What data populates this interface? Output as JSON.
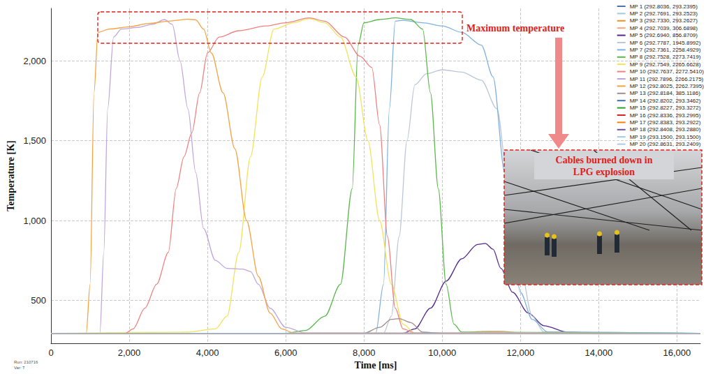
{
  "chart_data": {
    "type": "line",
    "xlabel": "Time [ms]",
    "ylabel": "Temperature [K]",
    "xlim": [
      0,
      16600
    ],
    "ylim": [
      230,
      2330
    ],
    "xticks": [
      0,
      {
        "value": 2000,
        "label": "2,000"
      },
      {
        "value": 4000,
        "label": "4,000"
      },
      {
        "value": 6000,
        "label": "6,000"
      },
      {
        "value": 8000,
        "label": "8,000"
      },
      {
        "value": 10000,
        "label": "10,000"
      },
      {
        "value": 12000,
        "label": "12,000"
      },
      {
        "value": 14000,
        "label": "14,000"
      },
      {
        "value": 16000,
        "label": "16,000"
      }
    ],
    "yticks": [
      500,
      {
        "value": 1000,
        "label": "1,000"
      },
      {
        "value": 1500,
        "label": "1,500"
      },
      {
        "value": 2000,
        "label": "2,000"
      }
    ],
    "grid": true,
    "legend": "upper right",
    "annotations": [
      "Maximum temperature",
      "Cables burned down in LPG explosion",
      "Run: 210716",
      "Var: T"
    ],
    "series": [
      {
        "name": "MP 1 (292.8036, 293.2395)",
        "color": "#4c72b0",
        "x": [
          0,
          16600
        ],
        "values": [
          293,
          293
        ]
      },
      {
        "name": "MP 2 (292.7691, 293.2523)",
        "color": "#9ecae1",
        "x": [
          0,
          16600
        ],
        "values": [
          293,
          293
        ]
      },
      {
        "name": "MP 3 (292.7330, 293.2627)",
        "color": "#f28e2b",
        "x": [
          0,
          16600
        ],
        "values": [
          293,
          293
        ]
      },
      {
        "name": "MP 4 (292.7039, 306.6898)",
        "color": "#f4a582",
        "x": [
          0,
          10500,
          11000,
          11500,
          12000,
          16600
        ],
        "values": [
          293,
          293,
          305,
          306,
          296,
          293
        ]
      },
      {
        "name": "MP 5 (292.6940, 856.8709)",
        "color": "#54278f",
        "x": [
          0,
          9000,
          9300,
          9700,
          10100,
          10500,
          10900,
          11100,
          11300,
          11500,
          11800,
          12200,
          12600,
          13200,
          14000,
          16600
        ],
        "values": [
          293,
          293,
          320,
          450,
          620,
          760,
          850,
          856,
          820,
          700,
          550,
          420,
          340,
          300,
          293,
          293
        ]
      },
      {
        "name": "MP 6 (292.7787, 1945.8992)",
        "color": "#bcc6d6",
        "x": [
          0,
          8500,
          8700,
          8900,
          9100,
          9300,
          9600,
          10000,
          10500,
          11000,
          11400,
          11700,
          12000,
          12300,
          12600,
          16600
        ],
        "values": [
          293,
          293,
          400,
          900,
          1500,
          1850,
          1920,
          1945,
          1930,
          1880,
          1700,
          1200,
          700,
          400,
          300,
          293
        ]
      },
      {
        "name": "MP 7 (292.7361, 2258.4929)",
        "color": "#7fb1de",
        "x": [
          0,
          8300,
          8500,
          8650,
          8800,
          9000,
          9500,
          10000,
          10500,
          11000,
          11300,
          11600,
          11800,
          12000,
          12300,
          12700,
          16600
        ],
        "values": [
          293,
          293,
          600,
          1700,
          2250,
          2255,
          2240,
          2220,
          2180,
          2100,
          1900,
          1300,
          800,
          550,
          380,
          300,
          293
        ]
      },
      {
        "name": "MP 8 (292.7528, 2273.7419)",
        "color": "#59b84a",
        "x": [
          0,
          6000,
          6500,
          7000,
          7400,
          7700,
          7850,
          8000,
          8400,
          8800,
          9200,
          9500,
          9700,
          9900,
          10100,
          10300,
          10500,
          16600
        ],
        "values": [
          293,
          293,
          310,
          400,
          600,
          1200,
          2100,
          2240,
          2260,
          2270,
          2260,
          2200,
          1800,
          1200,
          600,
          350,
          300,
          293
        ]
      },
      {
        "name": "MP 9 (292.7549, 2265.6628)",
        "color": "#f2e35c",
        "x": [
          0,
          3500,
          4200,
          4500,
          4800,
          5100,
          5400,
          5700,
          6200,
          6600,
          7000,
          7400,
          7800,
          8100,
          8400,
          8700,
          9000,
          9300,
          16600
        ],
        "values": [
          293,
          300,
          320,
          400,
          800,
          1400,
          1900,
          2200,
          2240,
          2265,
          2240,
          2150,
          1900,
          1500,
          1000,
          600,
          350,
          295,
          293
        ]
      },
      {
        "name": "MP 10 (292.7637, 2272.5410)",
        "color": "#f08080",
        "x": [
          0,
          1900,
          2100,
          2400,
          2700,
          3000,
          3200,
          3400,
          3600,
          3800,
          4000,
          4300,
          4800,
          5500,
          6000,
          6600,
          7000,
          7500,
          7900,
          8200,
          8400,
          8600,
          8800,
          9000,
          9300,
          16600
        ],
        "values": [
          293,
          293,
          320,
          450,
          600,
          800,
          1200,
          1400,
          1550,
          1800,
          2050,
          2150,
          2190,
          2220,
          2240,
          2270,
          2250,
          2150,
          2030,
          1960,
          1600,
          900,
          450,
          320,
          295,
          293
        ]
      },
      {
        "name": "MP 11 (292.7896, 2266.2175)",
        "color": "#c0a5dc",
        "x": [
          0,
          1250,
          1350,
          1450,
          1600,
          1800,
          2200,
          2600,
          2900,
          3100,
          3300,
          3500,
          3700,
          3900,
          4200,
          4500,
          4900,
          5100,
          5300,
          5600,
          6000,
          6500,
          16600
        ],
        "values": [
          293,
          293,
          800,
          1700,
          2150,
          2200,
          2210,
          2230,
          2260,
          2230,
          2000,
          1700,
          1300,
          950,
          750,
          700,
          695,
          680,
          600,
          450,
          330,
          295,
          293
        ]
      },
      {
        "name": "MP 12 (292.8025, 2262.7395)",
        "color": "#f5a243",
        "x": [
          0,
          900,
          1000,
          1100,
          1200,
          1500,
          2000,
          2500,
          3000,
          3500,
          3700,
          3900,
          4100,
          4400,
          4700,
          5000,
          5300,
          5600,
          5900,
          6200,
          16600
        ],
        "values": [
          293,
          293,
          600,
          1800,
          2180,
          2200,
          2215,
          2235,
          2250,
          2262,
          2258,
          2200,
          2050,
          1800,
          1450,
          1000,
          650,
          420,
          320,
          295,
          293
        ]
      },
      {
        "name": "MP 13 (292.8184, 385.1186)",
        "color": "#a28c8c",
        "x": [
          0,
          8000,
          8400,
          8700,
          8900,
          9200,
          9500,
          10000,
          16600
        ],
        "values": [
          293,
          293,
          330,
          380,
          385,
          360,
          300,
          293,
          293
        ]
      },
      {
        "name": "MP 14 (292.8202, 293.3462)",
        "color": "#3d6fb6",
        "x": [
          0,
          16600
        ],
        "values": [
          293,
          293
        ]
      },
      {
        "name": "MP 15 (292.8227, 293.3272)",
        "color": "#2ca02c",
        "x": [
          0,
          16600
        ],
        "values": [
          293,
          293
        ]
      },
      {
        "name": "MP 16 (292.8336, 293.2995)",
        "color": "#d62728",
        "x": [
          0,
          16600
        ],
        "values": [
          293,
          293
        ]
      },
      {
        "name": "MP 17 (292.8383, 293.2922)",
        "color": "#ff7f0e",
        "x": [
          0,
          16600
        ],
        "values": [
          293,
          293
        ]
      },
      {
        "name": "MP 18 (292.8408, 293.2880)",
        "color": "#6a51a3",
        "x": [
          0,
          16600
        ],
        "values": [
          293,
          293
        ]
      },
      {
        "name": "MP 19 (293.1500, 293.1500)",
        "color": "#9ecae1",
        "x": [
          0,
          16600
        ],
        "values": [
          293,
          293
        ]
      },
      {
        "name": "MP 20 (292.8631, 293.2409)",
        "color": "#aec7e8",
        "x": [
          0,
          16600
        ],
        "values": [
          293,
          293
        ]
      }
    ]
  }
}
